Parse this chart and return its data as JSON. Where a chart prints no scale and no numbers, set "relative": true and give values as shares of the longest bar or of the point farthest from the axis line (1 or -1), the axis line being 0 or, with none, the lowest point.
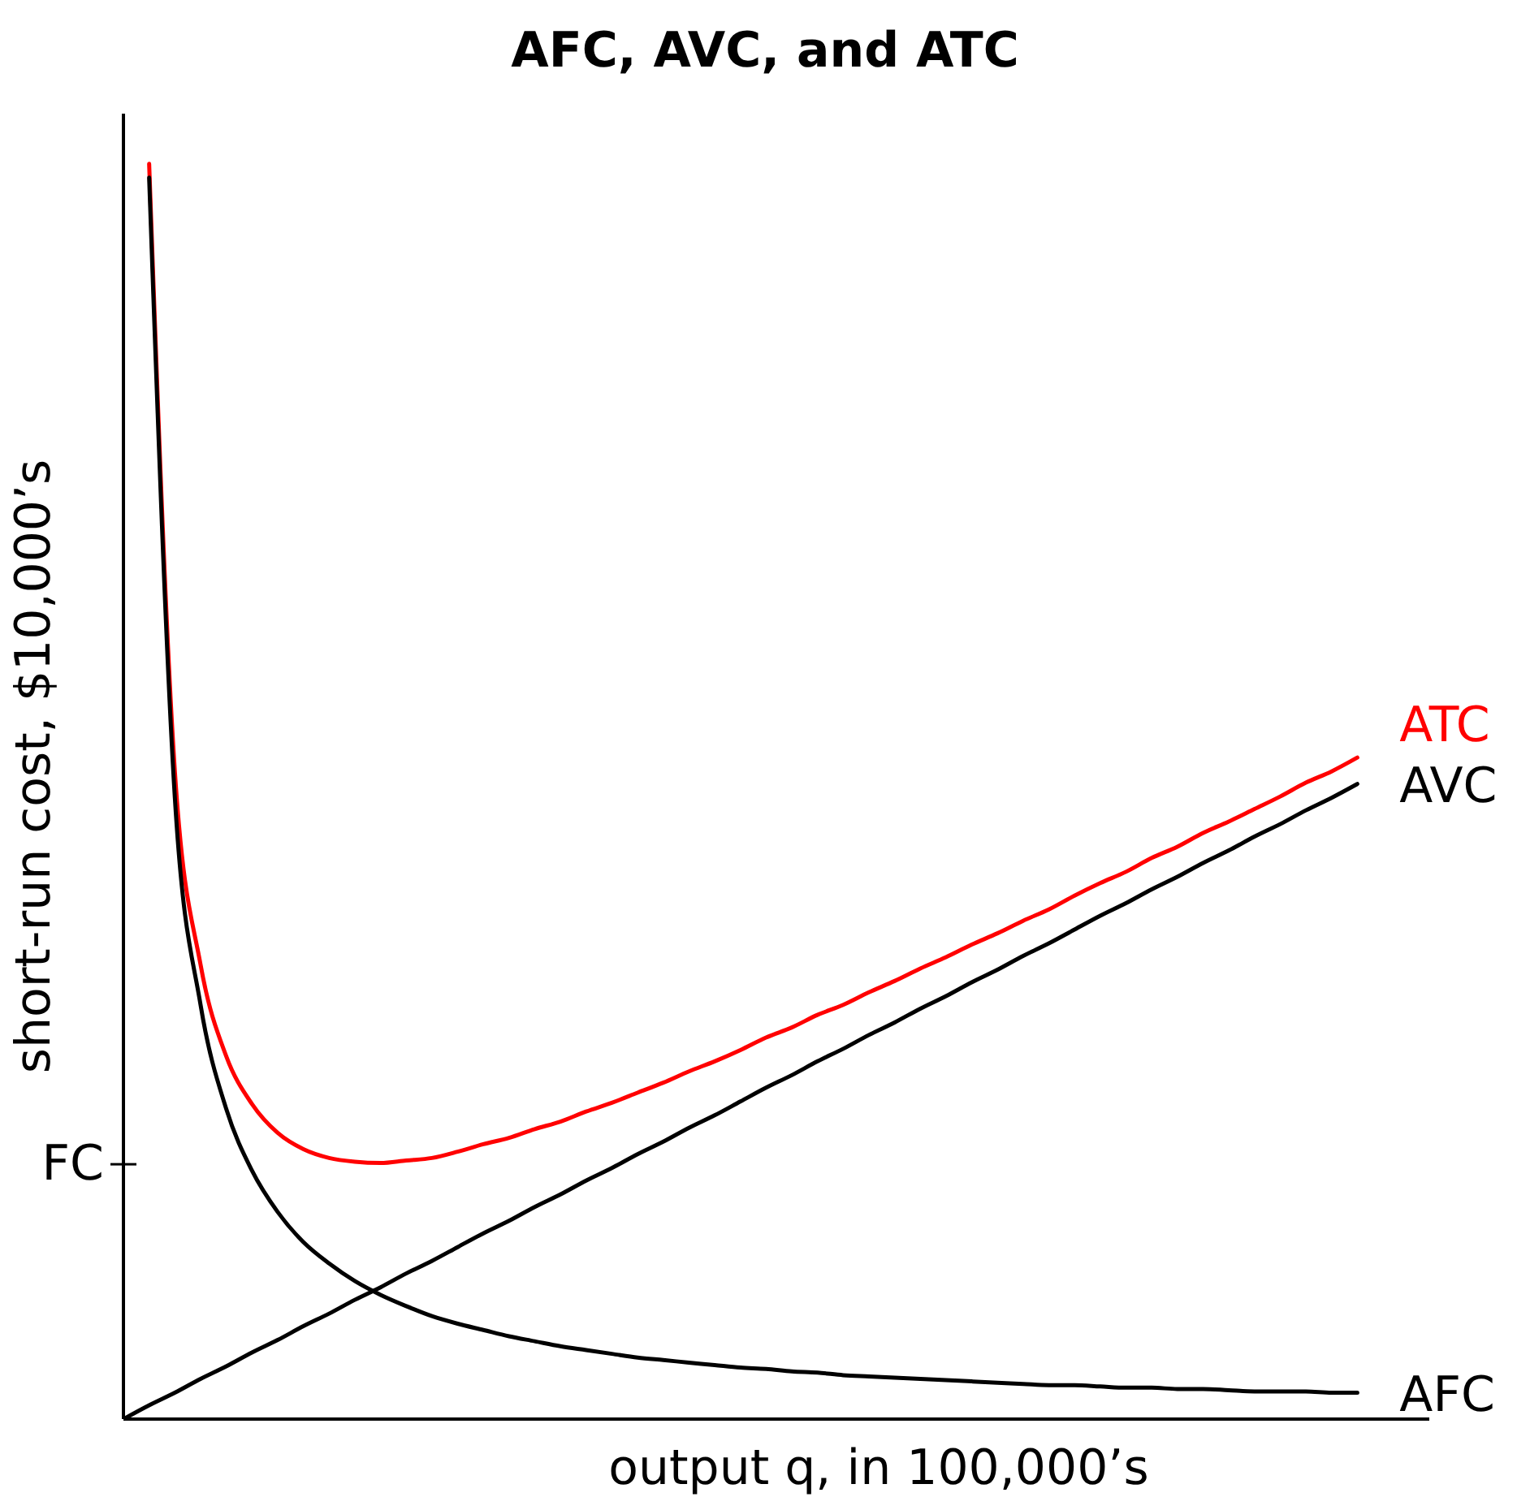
{
  "chart_data": {
    "type": "line",
    "title": "AFC, AVC, and ATC",
    "xlabel": "output q, in 100,000’s",
    "ylabel": "short-run cost, $10,000’s",
    "relative": true,
    "legend": false,
    "grid": false,
    "marker": "none",
    "line_style": "solid",
    "categories": [
      null,
      null,
      null,
      null,
      null,
      null,
      null,
      null,
      null,
      null,
      null,
      null,
      null,
      null,
      null,
      null,
      null,
      null,
      null,
      null,
      null,
      null,
      null,
      null,
      null,
      null,
      null,
      null,
      null,
      null,
      null,
      null,
      null,
      null,
      null,
      null,
      null,
      null,
      null,
      null,
      null,
      null,
      null,
      null,
      null,
      null,
      null,
      null,
      null
    ],
    "ref_lines": [
      {
        "axis": "y",
        "value": 0.203,
        "label": "FC"
      }
    ],
    "series": [
      {
        "name": "ATC",
        "color": "#ff0000",
        "values": [
          null,
          1.0,
          0.516,
          0.362,
          0.289,
          0.251,
          0.228,
          0.215,
          0.208,
          0.205,
          0.204,
          0.206,
          0.208,
          0.213,
          0.219,
          0.224,
          0.231,
          0.237,
          0.245,
          0.252,
          0.26,
          0.268,
          0.277,
          0.285,
          0.294,
          0.304,
          0.312,
          0.322,
          0.33,
          0.34,
          0.349,
          0.359,
          0.368,
          0.378,
          0.387,
          0.397,
          0.406,
          0.417,
          0.427,
          0.436,
          0.447,
          0.456,
          0.467,
          0.476,
          0.486,
          0.496,
          0.507,
          0.516,
          0.527
        ]
      },
      {
        "name": "AVC",
        "color": "#000000",
        "values": [
          0,
          0.011,
          0.021,
          0.032,
          0.042,
          0.053,
          0.063,
          0.074,
          0.084,
          0.095,
          0.105,
          0.116,
          0.126,
          0.137,
          0.148,
          0.158,
          0.169,
          0.179,
          0.19,
          0.2,
          0.211,
          0.221,
          0.232,
          0.242,
          0.253,
          0.264,
          0.274,
          0.285,
          0.295,
          0.306,
          0.316,
          0.327,
          0.337,
          0.348,
          0.358,
          0.369,
          0.379,
          0.39,
          0.401,
          0.411,
          0.422,
          0.432,
          0.443,
          0.453,
          0.464,
          0.474,
          0.485,
          0.495,
          0.506
        ]
      },
      {
        "name": "AFC",
        "color": "#000000",
        "values": [
          null,
          0.989,
          0.495,
          0.33,
          0.247,
          0.198,
          0.165,
          0.141,
          0.124,
          0.11,
          0.099,
          0.09,
          0.082,
          0.076,
          0.071,
          0.066,
          0.062,
          0.058,
          0.055,
          0.052,
          0.049,
          0.047,
          0.045,
          0.043,
          0.041,
          0.04,
          0.038,
          0.037,
          0.035,
          0.034,
          0.033,
          0.032,
          0.031,
          0.03,
          0.029,
          0.028,
          0.027,
          0.027,
          0.026,
          0.025,
          0.025,
          0.024,
          0.024,
          0.023,
          0.022,
          0.022,
          0.022,
          0.021,
          0.021
        ]
      }
    ]
  }
}
